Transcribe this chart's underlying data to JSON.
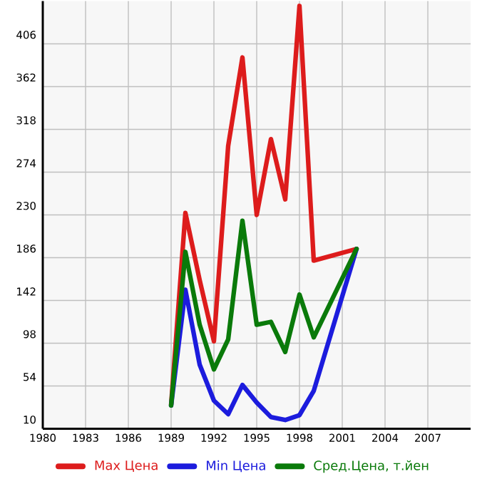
{
  "chart_data": {
    "type": "line",
    "x": [
      1989,
      1990,
      1991,
      1992,
      1993,
      1994,
      1995,
      1996,
      1997,
      1998,
      1999,
      2002
    ],
    "series": [
      {
        "name": "Max Цена",
        "color": "#dd1c1c",
        "values": [
          35,
          232,
          163,
          100,
          301,
          392,
          230,
          308,
          246,
          445,
          183,
          195
        ]
      },
      {
        "name": "Min Цена",
        "color": "#1c1cdd",
        "values": [
          34,
          153,
          76,
          39,
          25,
          55,
          37,
          22,
          19,
          24,
          49,
          195
        ]
      },
      {
        "name": "Сред.Цена, т.йен",
        "color": "#0a7a0a",
        "values": [
          34,
          192,
          117,
          71,
          102,
          224,
          117,
          120,
          89,
          148,
          104,
          195
        ]
      }
    ],
    "xlim": [
      1980,
      2010
    ],
    "xticks": [
      1980,
      1983,
      1986,
      1989,
      1992,
      1995,
      1998,
      2001,
      2004,
      2007
    ],
    "ylim": [
      10,
      450
    ],
    "yticks": [
      10,
      54,
      98,
      142,
      186,
      230,
      274,
      318,
      362,
      406
    ],
    "grid": true,
    "legend": "bottom",
    "marker": "none",
    "line_style": "solid"
  }
}
